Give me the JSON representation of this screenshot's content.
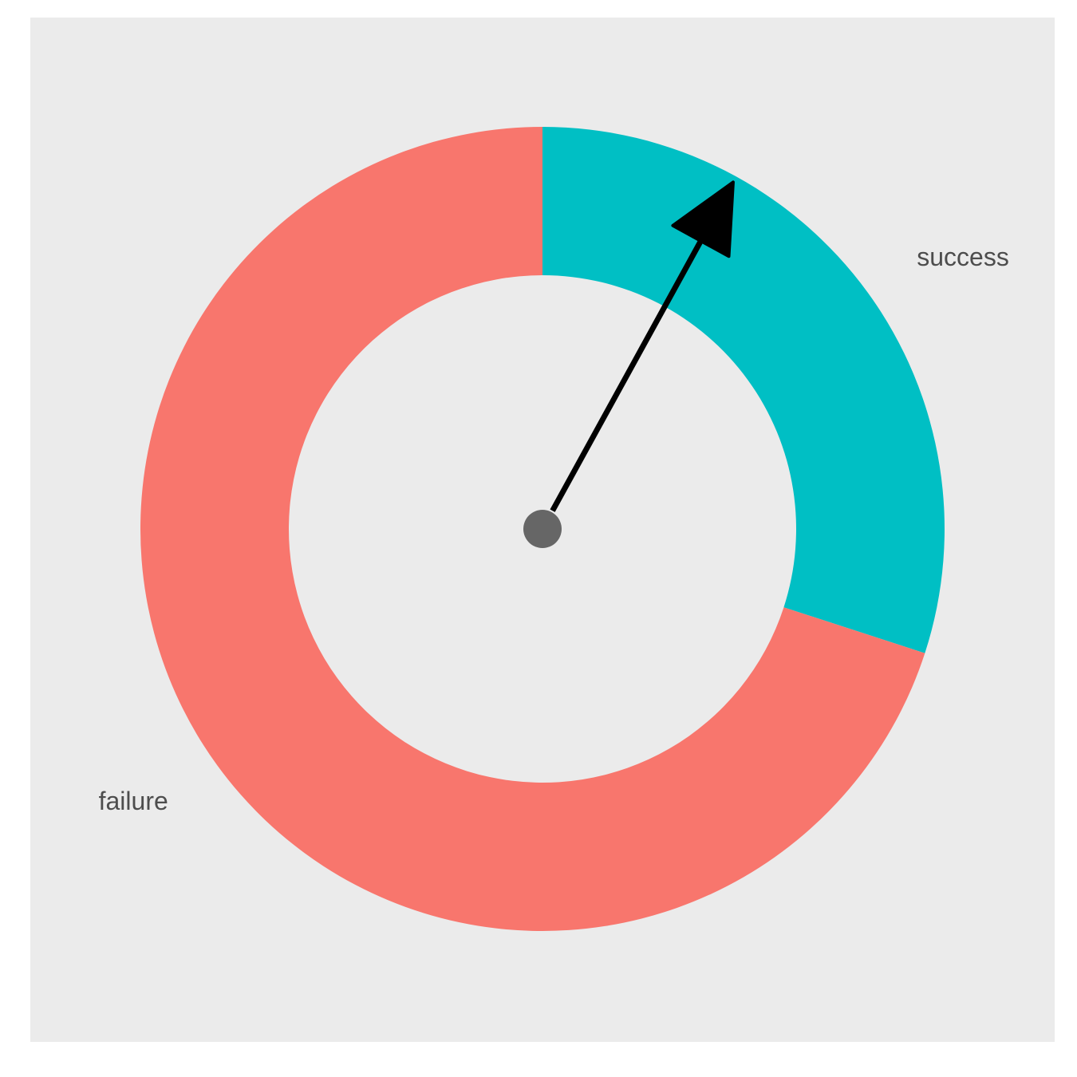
{
  "chart_data": {
    "type": "pie",
    "variant": "donut-gauge",
    "categories": [
      "success",
      "failure"
    ],
    "values": [
      0.3,
      0.7
    ],
    "colors": {
      "success": "#00BFC4",
      "failure": "#F8766D",
      "panel_background": "#EBEBEB",
      "page_background": "#FFFFFF",
      "needle": "#000000",
      "needle_hub": "#666666",
      "label_text": "#4D4D4D"
    },
    "needle_value": 0.08,
    "title": "",
    "legend": "none"
  }
}
